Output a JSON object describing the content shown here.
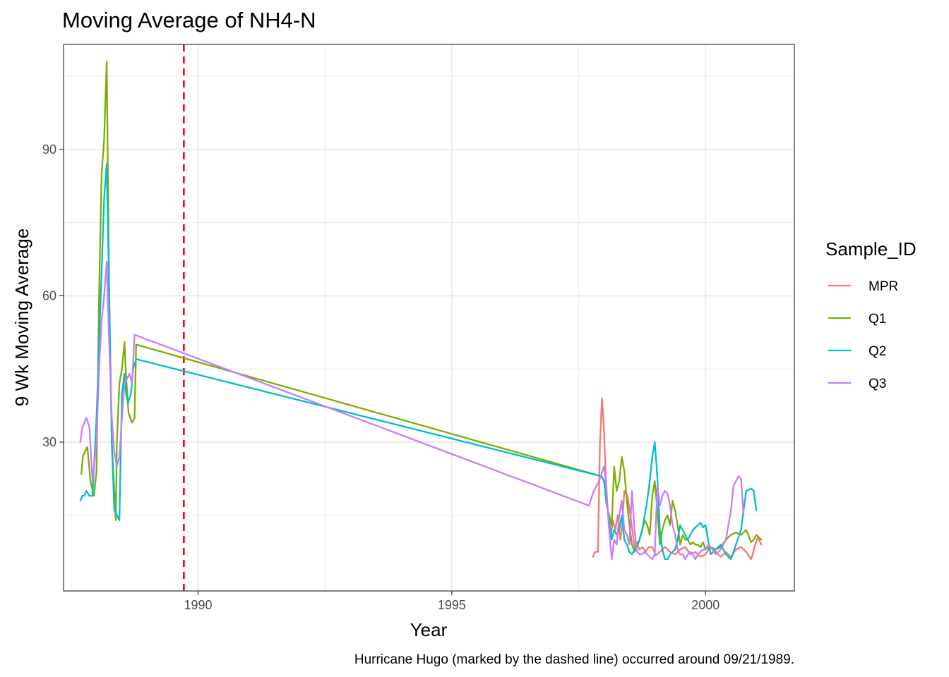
{
  "chart_data": {
    "type": "line",
    "title": "Moving Average of NH4-N",
    "xlabel": "Year",
    "ylabel": "9 Wk Moving Average",
    "caption": "Hurricane Hugo (marked by the dashed line) occurred around 09/21/1989.",
    "xlim": [
      1987.35,
      2001.75
    ],
    "ylim": [
      -0.5,
      111.5
    ],
    "x_ticks": [
      1990,
      1995,
      2000
    ],
    "x_tick_labels": [
      "1990",
      "1995",
      "2000"
    ],
    "x_minor": [
      1987.5,
      1992.5,
      1997.5,
      2002.5
    ],
    "y_ticks": [
      30,
      60,
      90
    ],
    "y_tick_labels": [
      "30",
      "60",
      "90"
    ],
    "y_minor": [
      15,
      45,
      75,
      105
    ],
    "grid": true,
    "legend": {
      "title": "Sample_ID",
      "position": "right"
    },
    "reference_line": {
      "x": 1989.72,
      "style": "dashed",
      "color": "#ff0000"
    },
    "series": [
      {
        "name": "MPR",
        "color": "#F8766D",
        "x": [
          1997.78,
          1997.82,
          1997.88,
          1997.92,
          1997.96,
          1998.0,
          1998.03,
          1998.06,
          1998.1,
          1998.13,
          1998.17,
          1998.22,
          1998.27,
          1998.32,
          1998.36,
          1998.4,
          1998.46,
          1998.52,
          1998.57,
          1998.6,
          1998.64,
          1998.7,
          1998.76,
          1998.82,
          1998.88,
          1998.95,
          1999.02,
          1999.1,
          1999.2,
          1999.3,
          1999.4,
          1999.5,
          1999.6,
          1999.7,
          1999.8,
          1999.9,
          2000.0,
          2000.1,
          2000.2,
          2000.3,
          2000.4,
          2000.5,
          2000.6,
          2000.7,
          2000.8,
          2000.9,
          2000.98,
          2001.03,
          2001.1
        ],
        "y": [
          6.5,
          7.5,
          7.5,
          30,
          39,
          32,
          24,
          18,
          12,
          10,
          14,
          12,
          15,
          10,
          13,
          20,
          19,
          15,
          11,
          8.5,
          9.5,
          8,
          8.5,
          7.5,
          8.5,
          8.5,
          6.8,
          7.5,
          8.5,
          7.5,
          7,
          8,
          8.5,
          7,
          7.5,
          6.5,
          7,
          8.5,
          7.5,
          6.5,
          7.5,
          6.5,
          8,
          8.5,
          7.5,
          6,
          9,
          10.5,
          9
        ]
      },
      {
        "name": "Q1",
        "color": "#7CAE00",
        "x": [
          1987.7,
          1987.73,
          1987.77,
          1987.82,
          1987.88,
          1987.95,
          1988.0,
          1988.05,
          1988.1,
          1988.15,
          1988.2,
          1988.25,
          1988.3,
          1988.35,
          1988.38,
          1988.4,
          1988.45,
          1988.5,
          1988.55,
          1988.58,
          1988.63,
          1988.7,
          1988.75,
          1988.78,
          1997.95,
          1998.0,
          1998.05,
          1998.1,
          1998.15,
          1998.2,
          1998.25,
          1998.3,
          1998.35,
          1998.4,
          1998.45,
          1998.5,
          1998.55,
          1998.6,
          1998.65,
          1998.7,
          1998.75,
          1998.8,
          1998.85,
          1998.9,
          1998.95,
          1999.0,
          1999.05,
          1999.1,
          1999.15,
          1999.2,
          1999.25,
          1999.3,
          1999.35,
          1999.4,
          1999.45,
          1999.5,
          1999.55,
          1999.6,
          1999.65,
          1999.7,
          1999.75,
          1999.8,
          1999.85,
          1999.9,
          1999.95,
          2000.0,
          2000.1,
          2000.2,
          2000.3,
          2000.4,
          2000.5,
          2000.6,
          2000.7,
          2000.8,
          2000.9,
          2000.95,
          2001.0,
          2001.05,
          2001.1
        ],
        "y": [
          23.5,
          27,
          28,
          29,
          22,
          19,
          24,
          60,
          85,
          92,
          108,
          60,
          30,
          20,
          14,
          30,
          42,
          45,
          50.5,
          44,
          36,
          34,
          35,
          50,
          23,
          22,
          17,
          15,
          13,
          25,
          20,
          22,
          27,
          24,
          18,
          13,
          9,
          7.5,
          8.5,
          10,
          12,
          14,
          13,
          11,
          19,
          22,
          16,
          9,
          12,
          14,
          15,
          13,
          18,
          16,
          13,
          9,
          11,
          10,
          10,
          9,
          9.5,
          9,
          9,
          8.5,
          9.5,
          8,
          8.5,
          8,
          8.5,
          10,
          11,
          11.5,
          11,
          12,
          9.5,
          10,
          11,
          10.5,
          10
        ]
      },
      {
        "name": "Q2",
        "color": "#00BFC4",
        "x": [
          1987.68,
          1987.72,
          1987.76,
          1987.8,
          1987.86,
          1987.92,
          1988.0,
          1988.05,
          1988.1,
          1988.15,
          1988.2,
          1988.25,
          1988.3,
          1988.35,
          1988.4,
          1988.45,
          1988.5,
          1988.55,
          1988.58,
          1988.62,
          1988.68,
          1988.72,
          1988.78,
          1997.95,
          1998.0,
          1998.05,
          1998.1,
          1998.15,
          1998.2,
          1998.25,
          1998.3,
          1998.35,
          1998.4,
          1998.45,
          1998.5,
          1998.55,
          1998.6,
          1998.65,
          1998.7,
          1998.75,
          1998.8,
          1998.85,
          1998.9,
          1998.95,
          1999.0,
          1999.05,
          1999.1,
          1999.15,
          1999.2,
          1999.25,
          1999.3,
          1999.35,
          1999.4,
          1999.45,
          1999.5,
          1999.55,
          1999.6,
          1999.65,
          1999.7,
          1999.75,
          1999.8,
          1999.85,
          1999.9,
          1999.95,
          2000.0,
          2000.05,
          2000.1,
          2000.2,
          2000.3,
          2000.4,
          2000.5,
          2000.6,
          2000.7,
          2000.8,
          2000.9,
          2000.95,
          2001.0
        ],
        "y": [
          18,
          19,
          19,
          20,
          19,
          19,
          35,
          50,
          65,
          80,
          87,
          60,
          30,
          16,
          15,
          14,
          40,
          44,
          40,
          38,
          40,
          45,
          47,
          23,
          22,
          18,
          14,
          10,
          12,
          11,
          12,
          15,
          10,
          9,
          7.5,
          7,
          8,
          9,
          10,
          12,
          15,
          18,
          22,
          27,
          30,
          23,
          12,
          8,
          6,
          6,
          7,
          7.5,
          8,
          10,
          13,
          12,
          11,
          10,
          11,
          12,
          12.5,
          13,
          13.5,
          12.5,
          13,
          10,
          7,
          8,
          9,
          7,
          6,
          9,
          12,
          20,
          20.5,
          20,
          16
        ]
      },
      {
        "name": "Q3",
        "color": "#C77CFF",
        "x": [
          1987.68,
          1987.72,
          1987.76,
          1987.8,
          1987.86,
          1987.92,
          1988.0,
          1988.05,
          1988.1,
          1988.15,
          1988.2,
          1988.25,
          1988.3,
          1988.35,
          1988.4,
          1988.45,
          1988.5,
          1988.55,
          1988.6,
          1988.65,
          1988.7,
          1988.75,
          1997.7,
          1997.8,
          1997.9,
          1997.95,
          1998.0,
          1998.05,
          1998.1,
          1998.15,
          1998.2,
          1998.25,
          1998.3,
          1998.35,
          1998.4,
          1998.45,
          1998.5,
          1998.55,
          1998.6,
          1998.65,
          1998.7,
          1998.75,
          1998.8,
          1998.85,
          1998.9,
          1998.95,
          1999.0,
          1999.05,
          1999.1,
          1999.15,
          1999.2,
          1999.25,
          1999.3,
          1999.35,
          1999.4,
          1999.45,
          1999.5,
          1999.55,
          1999.6,
          1999.65,
          1999.7,
          1999.75,
          1999.8,
          1999.85,
          1999.9,
          1999.95,
          2000.0,
          2000.05,
          2000.1,
          2000.2,
          2000.3,
          2000.4,
          2000.5,
          2000.55,
          2000.6,
          2000.65,
          2000.7,
          2000.75
        ],
        "y": [
          30,
          33,
          34,
          35,
          33,
          22,
          30,
          45,
          55,
          60,
          67,
          50,
          35,
          28,
          25,
          27,
          35,
          42,
          43,
          44,
          42,
          52,
          17,
          20,
          22,
          23.5,
          25,
          20,
          12,
          6,
          10,
          9,
          15,
          18,
          12,
          11,
          9,
          20,
          12,
          7.5,
          7,
          7,
          7.5,
          7,
          6.5,
          6,
          7,
          21,
          17,
          19,
          20,
          19.5,
          17,
          13,
          11,
          8,
          7,
          7,
          6,
          7,
          7.5,
          7,
          6,
          7,
          7.5,
          8,
          8,
          9,
          8.5,
          7,
          8,
          10,
          16,
          21,
          22,
          23,
          22.5,
          15
        ]
      }
    ]
  }
}
